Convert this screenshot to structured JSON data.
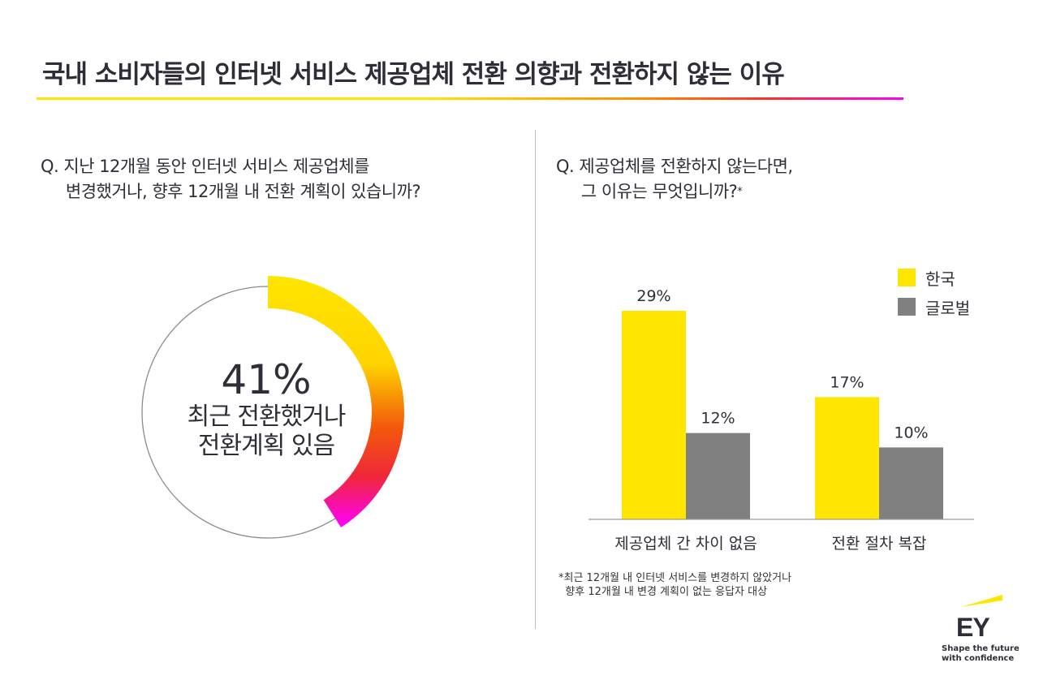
{
  "title": "국내 소비자들의 인터넷 서비스 제공업체 전환 의향과 전환하지 않는 이유",
  "left": {
    "question": "Q. 지난 12개월 동안 인터넷 서비스 제공업체를\n     변경했거나, 향후 12개월 내 전환 계획이 있습니까?",
    "value_label": "41%",
    "label_line1": "최근 전환했거나",
    "label_line2": "전환계획 있음"
  },
  "right": {
    "question_line1": "Q. 제공업체를 전환하지 않는다면,",
    "question_line2": "     그 이유는 무엇입니까?",
    "question_mark": "*",
    "footnote": "*최근 12개월 내 인터넷 서비스를 변경하지 않았거나\n  향후 12개월 내 변경 계획이 없는 응답자 대상"
  },
  "logo": {
    "text": "EY",
    "tagline": "Shape the future\nwith confidence"
  },
  "colors": {
    "yellow": "#FFE600",
    "grey": "#808080",
    "text": "#2E2E38",
    "gradient_end": "#FF00FF"
  },
  "chart_data": [
    {
      "type": "pie",
      "variant": "donut",
      "values": [
        41
      ],
      "unit": "%",
      "labels": [
        "최근 전환했거나 전환계획 있음"
      ]
    },
    {
      "type": "bar",
      "categories": [
        "제공업체 간 차이 없음",
        "전환 절차 복잡"
      ],
      "series": [
        {
          "name": "한국",
          "values": [
            29,
            17
          ],
          "labels": [
            "29%",
            "17%"
          ],
          "color": "#FFE600"
        },
        {
          "name": "글로벌",
          "values": [
            12,
            10
          ],
          "labels": [
            "12%",
            "10%"
          ],
          "color": "#808080"
        }
      ],
      "ylim": [
        0,
        30
      ],
      "grid": false,
      "legend": "top-right"
    }
  ]
}
